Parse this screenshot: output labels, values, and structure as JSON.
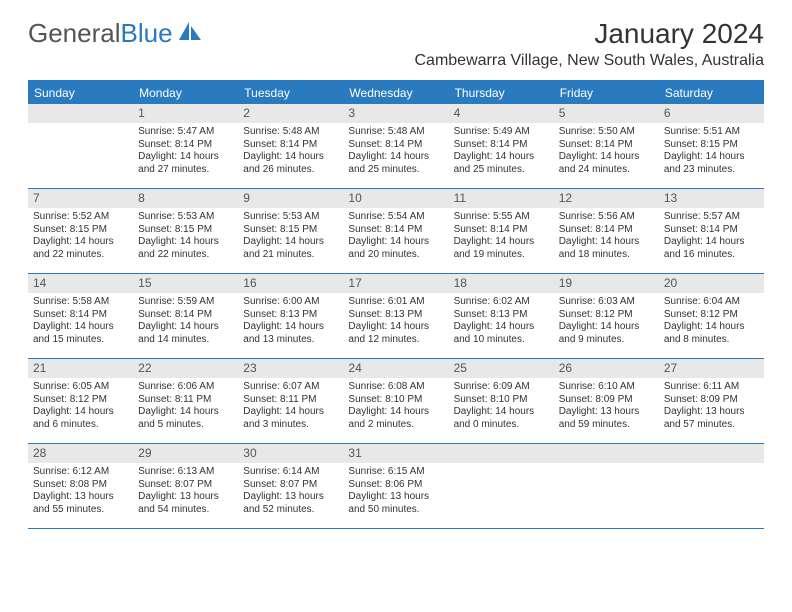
{
  "colors": {
    "accent": "#2a7ac0",
    "header_text": "#ffffff",
    "daynum_bg": "#e8e8e8",
    "daynum_text": "#555555",
    "body_text": "#333333",
    "logo_gray": "#555555",
    "logo_blue": "#2a7ac0",
    "background": "#ffffff"
  },
  "typography": {
    "font_family": "Arial, Helvetica, sans-serif",
    "month_title_size": 28,
    "location_size": 16,
    "day_header_size": 12,
    "daynum_size": 12,
    "cell_text_size": 10
  },
  "logo": {
    "word1": "General",
    "word2": "Blue"
  },
  "title": "January 2024",
  "location": "Cambewarra Village, New South Wales, Australia",
  "day_names": [
    "Sunday",
    "Monday",
    "Tuesday",
    "Wednesday",
    "Thursday",
    "Friday",
    "Saturday"
  ],
  "weeks": [
    [
      null,
      {
        "n": "1",
        "sr": "Sunrise: 5:47 AM",
        "ss": "Sunset: 8:14 PM",
        "d1": "Daylight: 14 hours",
        "d2": "and 27 minutes."
      },
      {
        "n": "2",
        "sr": "Sunrise: 5:48 AM",
        "ss": "Sunset: 8:14 PM",
        "d1": "Daylight: 14 hours",
        "d2": "and 26 minutes."
      },
      {
        "n": "3",
        "sr": "Sunrise: 5:48 AM",
        "ss": "Sunset: 8:14 PM",
        "d1": "Daylight: 14 hours",
        "d2": "and 25 minutes."
      },
      {
        "n": "4",
        "sr": "Sunrise: 5:49 AM",
        "ss": "Sunset: 8:14 PM",
        "d1": "Daylight: 14 hours",
        "d2": "and 25 minutes."
      },
      {
        "n": "5",
        "sr": "Sunrise: 5:50 AM",
        "ss": "Sunset: 8:14 PM",
        "d1": "Daylight: 14 hours",
        "d2": "and 24 minutes."
      },
      {
        "n": "6",
        "sr": "Sunrise: 5:51 AM",
        "ss": "Sunset: 8:15 PM",
        "d1": "Daylight: 14 hours",
        "d2": "and 23 minutes."
      }
    ],
    [
      {
        "n": "7",
        "sr": "Sunrise: 5:52 AM",
        "ss": "Sunset: 8:15 PM",
        "d1": "Daylight: 14 hours",
        "d2": "and 22 minutes."
      },
      {
        "n": "8",
        "sr": "Sunrise: 5:53 AM",
        "ss": "Sunset: 8:15 PM",
        "d1": "Daylight: 14 hours",
        "d2": "and 22 minutes."
      },
      {
        "n": "9",
        "sr": "Sunrise: 5:53 AM",
        "ss": "Sunset: 8:15 PM",
        "d1": "Daylight: 14 hours",
        "d2": "and 21 minutes."
      },
      {
        "n": "10",
        "sr": "Sunrise: 5:54 AM",
        "ss": "Sunset: 8:14 PM",
        "d1": "Daylight: 14 hours",
        "d2": "and 20 minutes."
      },
      {
        "n": "11",
        "sr": "Sunrise: 5:55 AM",
        "ss": "Sunset: 8:14 PM",
        "d1": "Daylight: 14 hours",
        "d2": "and 19 minutes."
      },
      {
        "n": "12",
        "sr": "Sunrise: 5:56 AM",
        "ss": "Sunset: 8:14 PM",
        "d1": "Daylight: 14 hours",
        "d2": "and 18 minutes."
      },
      {
        "n": "13",
        "sr": "Sunrise: 5:57 AM",
        "ss": "Sunset: 8:14 PM",
        "d1": "Daylight: 14 hours",
        "d2": "and 16 minutes."
      }
    ],
    [
      {
        "n": "14",
        "sr": "Sunrise: 5:58 AM",
        "ss": "Sunset: 8:14 PM",
        "d1": "Daylight: 14 hours",
        "d2": "and 15 minutes."
      },
      {
        "n": "15",
        "sr": "Sunrise: 5:59 AM",
        "ss": "Sunset: 8:14 PM",
        "d1": "Daylight: 14 hours",
        "d2": "and 14 minutes."
      },
      {
        "n": "16",
        "sr": "Sunrise: 6:00 AM",
        "ss": "Sunset: 8:13 PM",
        "d1": "Daylight: 14 hours",
        "d2": "and 13 minutes."
      },
      {
        "n": "17",
        "sr": "Sunrise: 6:01 AM",
        "ss": "Sunset: 8:13 PM",
        "d1": "Daylight: 14 hours",
        "d2": "and 12 minutes."
      },
      {
        "n": "18",
        "sr": "Sunrise: 6:02 AM",
        "ss": "Sunset: 8:13 PM",
        "d1": "Daylight: 14 hours",
        "d2": "and 10 minutes."
      },
      {
        "n": "19",
        "sr": "Sunrise: 6:03 AM",
        "ss": "Sunset: 8:12 PM",
        "d1": "Daylight: 14 hours",
        "d2": "and 9 minutes."
      },
      {
        "n": "20",
        "sr": "Sunrise: 6:04 AM",
        "ss": "Sunset: 8:12 PM",
        "d1": "Daylight: 14 hours",
        "d2": "and 8 minutes."
      }
    ],
    [
      {
        "n": "21",
        "sr": "Sunrise: 6:05 AM",
        "ss": "Sunset: 8:12 PM",
        "d1": "Daylight: 14 hours",
        "d2": "and 6 minutes."
      },
      {
        "n": "22",
        "sr": "Sunrise: 6:06 AM",
        "ss": "Sunset: 8:11 PM",
        "d1": "Daylight: 14 hours",
        "d2": "and 5 minutes."
      },
      {
        "n": "23",
        "sr": "Sunrise: 6:07 AM",
        "ss": "Sunset: 8:11 PM",
        "d1": "Daylight: 14 hours",
        "d2": "and 3 minutes."
      },
      {
        "n": "24",
        "sr": "Sunrise: 6:08 AM",
        "ss": "Sunset: 8:10 PM",
        "d1": "Daylight: 14 hours",
        "d2": "and 2 minutes."
      },
      {
        "n": "25",
        "sr": "Sunrise: 6:09 AM",
        "ss": "Sunset: 8:10 PM",
        "d1": "Daylight: 14 hours",
        "d2": "and 0 minutes."
      },
      {
        "n": "26",
        "sr": "Sunrise: 6:10 AM",
        "ss": "Sunset: 8:09 PM",
        "d1": "Daylight: 13 hours",
        "d2": "and 59 minutes."
      },
      {
        "n": "27",
        "sr": "Sunrise: 6:11 AM",
        "ss": "Sunset: 8:09 PM",
        "d1": "Daylight: 13 hours",
        "d2": "and 57 minutes."
      }
    ],
    [
      {
        "n": "28",
        "sr": "Sunrise: 6:12 AM",
        "ss": "Sunset: 8:08 PM",
        "d1": "Daylight: 13 hours",
        "d2": "and 55 minutes."
      },
      {
        "n": "29",
        "sr": "Sunrise: 6:13 AM",
        "ss": "Sunset: 8:07 PM",
        "d1": "Daylight: 13 hours",
        "d2": "and 54 minutes."
      },
      {
        "n": "30",
        "sr": "Sunrise: 6:14 AM",
        "ss": "Sunset: 8:07 PM",
        "d1": "Daylight: 13 hours",
        "d2": "and 52 minutes."
      },
      {
        "n": "31",
        "sr": "Sunrise: 6:15 AM",
        "ss": "Sunset: 8:06 PM",
        "d1": "Daylight: 13 hours",
        "d2": "and 50 minutes."
      },
      null,
      null,
      null
    ]
  ]
}
